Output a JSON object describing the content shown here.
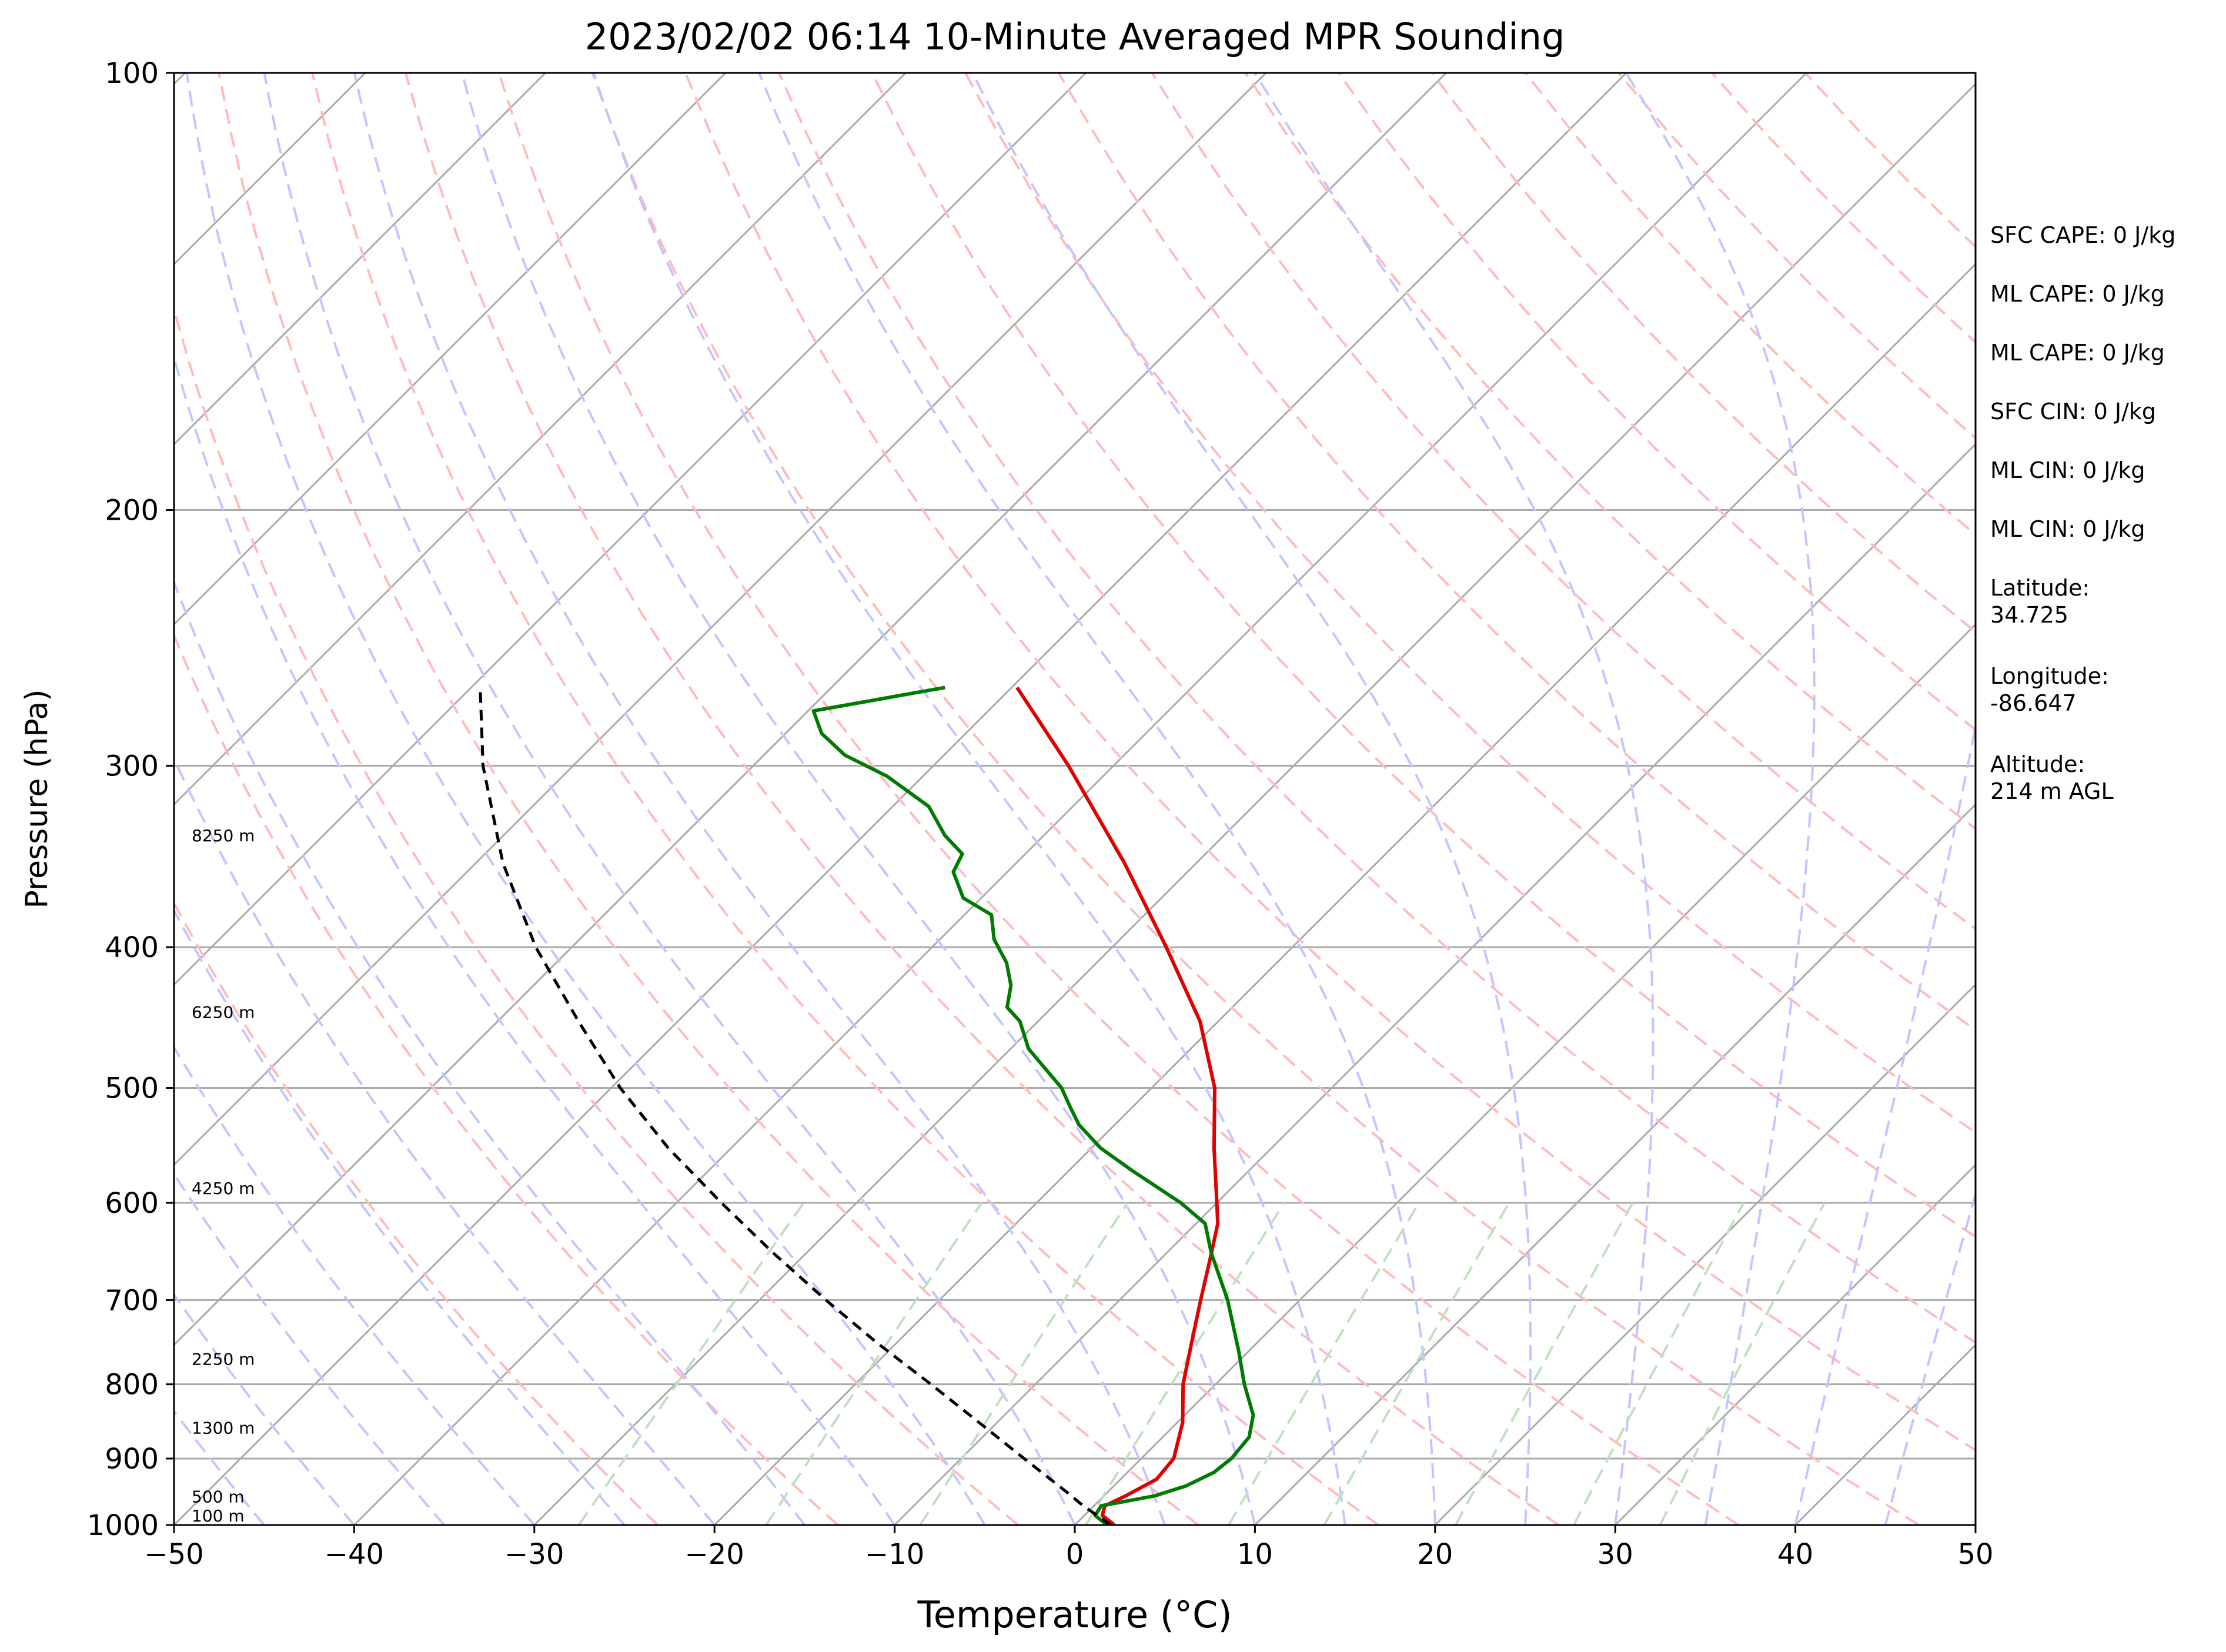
{
  "chart_data": {
    "type": "line",
    "title": "2023/02/02 06:14 10-Minute Averaged MPR Sounding",
    "xlabel": "Temperature (°C)",
    "ylabel": "Pressure (hPa)",
    "xlim": [
      -50,
      50
    ],
    "ylim": [
      1000,
      100
    ],
    "y_scale": "log",
    "x_ticks": [
      -50,
      -40,
      -30,
      -20,
      -10,
      0,
      10,
      20,
      30,
      40,
      50
    ],
    "x_tick_labels": [
      "−50",
      "−40",
      "−30",
      "−20",
      "−10",
      "0",
      "10",
      "20",
      "30",
      "40",
      "50"
    ],
    "y_ticks": [
      1000,
      900,
      800,
      700,
      600,
      500,
      400,
      300,
      200,
      100
    ],
    "y_tick_labels": [
      "1000",
      "900",
      "800",
      "700",
      "600",
      "500",
      "400",
      "300",
      "200",
      "100"
    ],
    "grid": true,
    "skew": "45-degree skew-T log-p",
    "series": [
      {
        "id": "temperature",
        "color": "#e00000",
        "style": "solid",
        "points": [
          {
            "p": 1000,
            "t": 2.2
          },
          {
            "p": 985,
            "t": 1.0
          },
          {
            "p": 970,
            "t": 0.6
          },
          {
            "p": 955,
            "t": 1.2
          },
          {
            "p": 930,
            "t": 2.0
          },
          {
            "p": 900,
            "t": 1.8
          },
          {
            "p": 850,
            "t": 0.3
          },
          {
            "p": 800,
            "t": -1.8
          },
          {
            "p": 750,
            "t": -3.6
          },
          {
            "p": 700,
            "t": -5.5
          },
          {
            "p": 650,
            "t": -7.5
          },
          {
            "p": 620,
            "t": -8.8
          },
          {
            "p": 600,
            "t": -10.0
          },
          {
            "p": 550,
            "t": -13.2
          },
          {
            "p": 500,
            "t": -16.5
          },
          {
            "p": 450,
            "t": -21.0
          },
          {
            "p": 400,
            "t": -27.0
          },
          {
            "p": 350,
            "t": -34.0
          },
          {
            "p": 300,
            "t": -42.5
          },
          {
            "p": 265,
            "t": -49.7
          }
        ]
      },
      {
        "id": "dewpoint",
        "color": "#007a00",
        "style": "solid",
        "points": [
          {
            "p": 1000,
            "t": 1.8
          },
          {
            "p": 985,
            "t": 0.6
          },
          {
            "p": 970,
            "t": 0.4
          },
          {
            "p": 965,
            "t": 1.2
          },
          {
            "p": 955,
            "t": 2.8
          },
          {
            "p": 940,
            "t": 4.0
          },
          {
            "p": 920,
            "t": 4.8
          },
          {
            "p": 900,
            "t": 5.0
          },
          {
            "p": 870,
            "t": 4.8
          },
          {
            "p": 840,
            "t": 3.8
          },
          {
            "p": 800,
            "t": 1.6
          },
          {
            "p": 760,
            "t": -0.5
          },
          {
            "p": 700,
            "t": -4.0
          },
          {
            "p": 650,
            "t": -7.5
          },
          {
            "p": 620,
            "t": -9.5
          },
          {
            "p": 600,
            "t": -12.0
          },
          {
            "p": 570,
            "t": -16.5
          },
          {
            "p": 550,
            "t": -19.5
          },
          {
            "p": 530,
            "t": -22.0
          },
          {
            "p": 515,
            "t": -23.5
          },
          {
            "p": 500,
            "t": -25.0
          },
          {
            "p": 470,
            "t": -29.0
          },
          {
            "p": 450,
            "t": -31.0
          },
          {
            "p": 440,
            "t": -32.5
          },
          {
            "p": 425,
            "t": -33.5
          },
          {
            "p": 410,
            "t": -35.0
          },
          {
            "p": 395,
            "t": -37.0
          },
          {
            "p": 380,
            "t": -38.5
          },
          {
            "p": 370,
            "t": -41.0
          },
          {
            "p": 355,
            "t": -43.0
          },
          {
            "p": 345,
            "t": -43.5
          },
          {
            "p": 335,
            "t": -45.5
          },
          {
            "p": 320,
            "t": -48.0
          },
          {
            "p": 305,
            "t": -52.0
          },
          {
            "p": 295,
            "t": -55.5
          },
          {
            "p": 285,
            "t": -58.0
          },
          {
            "p": 275,
            "t": -59.7
          },
          {
            "p": 265,
            "t": -53.7
          }
        ]
      },
      {
        "id": "parcel",
        "color": "#000000",
        "style": "dashed",
        "points": [
          {
            "p": 1000,
            "t": 2.0
          },
          {
            "p": 970,
            "t": -0.6
          },
          {
            "p": 950,
            "t": -2.2
          },
          {
            "p": 900,
            "t": -6.5
          },
          {
            "p": 850,
            "t": -11.0
          },
          {
            "p": 800,
            "t": -15.8
          },
          {
            "p": 750,
            "t": -21.0
          },
          {
            "p": 700,
            "t": -26.3
          },
          {
            "p": 650,
            "t": -31.8
          },
          {
            "p": 600,
            "t": -37.5
          },
          {
            "p": 550,
            "t": -43.5
          },
          {
            "p": 500,
            "t": -49.5
          },
          {
            "p": 450,
            "t": -55.5
          },
          {
            "p": 400,
            "t": -62.0
          },
          {
            "p": 350,
            "t": -68.5
          },
          {
            "p": 300,
            "t": -75.0
          },
          {
            "p": 265,
            "t": -79.5
          }
        ]
      }
    ],
    "background_lines": {
      "isotherms": {
        "color": "#aaaaaa",
        "style": "solid"
      },
      "dry_adiabats": {
        "color": "#ffbbbb",
        "style": "dashed"
      },
      "moist_adiabats": {
        "color": "#c4c4ff",
        "style": "dashed"
      },
      "mixing_ratio_lines": {
        "color": "#bfe0bf",
        "style": "dashed"
      }
    },
    "height_annotations": [
      {
        "p": 1000,
        "label": "100 m"
      },
      {
        "p": 970,
        "label": "500 m"
      },
      {
        "p": 870,
        "label": "1300 m"
      },
      {
        "p": 780,
        "label": "2250 m"
      },
      {
        "p": 595,
        "label": "4250 m"
      },
      {
        "p": 450,
        "label": "6250 m"
      },
      {
        "p": 340,
        "label": "8250 m"
      }
    ]
  },
  "info": [
    {
      "lines": [
        "SFC CAPE: 0 J/kg"
      ]
    },
    {
      "lines": [
        "ML CAPE: 0 J/kg"
      ]
    },
    {
      "lines": [
        "ML CAPE: 0 J/kg"
      ]
    },
    {
      "lines": [
        "SFC CIN: 0 J/kg"
      ]
    },
    {
      "lines": [
        "ML CIN: 0 J/kg"
      ]
    },
    {
      "lines": [
        "ML CIN: 0 J/kg"
      ]
    },
    {
      "lines": [
        "Latitude:",
        "34.725"
      ]
    },
    {
      "lines": [
        "Longitude:",
        "-86.647"
      ]
    },
    {
      "lines": [
        "Altitude:",
        "214 m AGL"
      ]
    }
  ]
}
